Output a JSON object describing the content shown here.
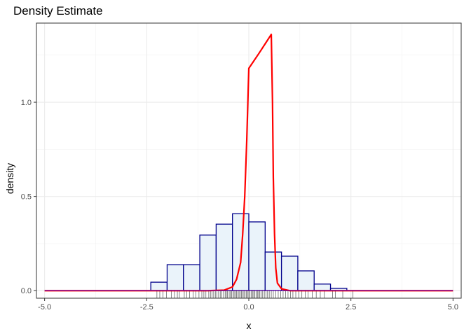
{
  "chart_data": {
    "type": "histogram",
    "title": "Density Estimate",
    "xlabel": "x",
    "ylabel": "density",
    "xlim": [
      -5.2,
      5.2
    ],
    "ylim": [
      -0.04,
      1.42
    ],
    "x_ticks": [
      -5.0,
      -2.5,
      0.0,
      2.5,
      5.0
    ],
    "x_tick_labels": [
      "-5.0",
      "-2.5",
      "0.0",
      "2.5",
      "5.0"
    ],
    "y_ticks": [
      0.0,
      0.5,
      1.0
    ],
    "y_tick_labels": [
      "0.0",
      "0.5",
      "1.0"
    ],
    "grid": true,
    "histogram": {
      "bin_width": 0.4,
      "bins": [
        {
          "x0": -2.4,
          "x1": -2.0,
          "density": 0.045
        },
        {
          "x0": -2.0,
          "x1": -1.6,
          "density": 0.138
        },
        {
          "x0": -1.6,
          "x1": -1.2,
          "density": 0.138
        },
        {
          "x0": -1.2,
          "x1": -0.8,
          "density": 0.295
        },
        {
          "x0": -0.8,
          "x1": -0.4,
          "density": 0.353
        },
        {
          "x0": -0.4,
          "x1": 0.0,
          "density": 0.408
        },
        {
          "x0": 0.0,
          "x1": 0.4,
          "density": 0.365
        },
        {
          "x0": 0.4,
          "x1": 0.8,
          "density": 0.205
        },
        {
          "x0": 0.8,
          "x1": 1.2,
          "density": 0.183
        },
        {
          "x0": 1.2,
          "x1": 1.6,
          "density": 0.105
        },
        {
          "x0": 1.6,
          "x1": 2.0,
          "density": 0.035
        },
        {
          "x0": 2.0,
          "x1": 2.4,
          "density": 0.012
        }
      ],
      "fill": "#eaf3fa",
      "stroke": "#00008b"
    },
    "series": [
      {
        "type": "line",
        "color": "#ff0000",
        "points": [
          [
            -5.0,
            0.0
          ],
          [
            -1.0,
            0.0
          ],
          [
            -0.6,
            0.003
          ],
          [
            -0.4,
            0.02
          ],
          [
            -0.3,
            0.06
          ],
          [
            -0.2,
            0.15
          ],
          [
            -0.15,
            0.3
          ],
          [
            -0.1,
            0.5
          ],
          [
            -0.05,
            0.8
          ],
          [
            0.0,
            1.18
          ],
          [
            0.25,
            1.26
          ],
          [
            0.55,
            1.36
          ],
          [
            0.58,
            1.0
          ],
          [
            0.6,
            0.6
          ],
          [
            0.63,
            0.3
          ],
          [
            0.66,
            0.12
          ],
          [
            0.7,
            0.04
          ],
          [
            0.8,
            0.01
          ],
          [
            1.0,
            0.0
          ],
          [
            5.0,
            0.0
          ]
        ]
      },
      {
        "type": "line",
        "color": "#6a0dad",
        "points": [
          [
            -5.0,
            0.0
          ],
          [
            5.0,
            0.0
          ]
        ]
      }
    ],
    "rug": {
      "color": "#333333",
      "values": [
        -2.25,
        -2.18,
        -2.1,
        -2.02,
        -1.9,
        -1.82,
        -1.75,
        -1.7,
        -1.58,
        -1.52,
        -1.45,
        -1.36,
        -1.3,
        -1.22,
        -1.15,
        -1.1,
        -1.05,
        -0.98,
        -0.94,
        -0.9,
        -0.86,
        -0.82,
        -0.78,
        -0.74,
        -0.7,
        -0.66,
        -0.62,
        -0.58,
        -0.55,
        -0.52,
        -0.48,
        -0.45,
        -0.42,
        -0.39,
        -0.36,
        -0.33,
        -0.3,
        -0.27,
        -0.24,
        -0.21,
        -0.18,
        -0.15,
        -0.12,
        -0.09,
        -0.06,
        -0.03,
        0.0,
        0.03,
        0.06,
        0.09,
        0.12,
        0.15,
        0.18,
        0.21,
        0.24,
        0.27,
        0.3,
        0.34,
        0.38,
        0.42,
        0.46,
        0.5,
        0.55,
        0.6,
        0.66,
        0.72,
        0.78,
        0.84,
        0.9,
        0.96,
        1.02,
        1.08,
        1.15,
        1.22,
        1.3,
        1.38,
        1.45,
        1.55,
        1.65,
        1.75,
        1.85,
        2.05,
        2.12,
        2.3,
        2.55
      ]
    }
  }
}
